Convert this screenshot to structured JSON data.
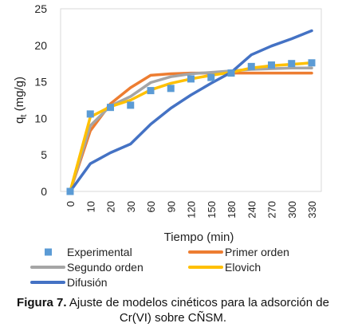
{
  "chart_data": {
    "type": "line",
    "xlabel": "Tiempo (min)",
    "ylabel": "q_t (mg/g)",
    "ylabel_main": "q",
    "ylabel_sub": "t",
    "ylabel_unit": " (mg/g)",
    "categories": [
      "0",
      "10",
      "20",
      "30",
      "60",
      "90",
      "120",
      "150",
      "180",
      "240",
      "270",
      "300",
      "330"
    ],
    "ylim": [
      0,
      25
    ],
    "yticks": [
      0,
      5,
      10,
      15,
      20,
      25
    ],
    "grid": false,
    "legend_position": "bottom",
    "series": [
      {
        "name": "Experimental",
        "kind": "scatter",
        "color": "#5b9bd5",
        "values": [
          0,
          10.6,
          11.5,
          11.8,
          13.8,
          14.1,
          15.4,
          15.6,
          16.2,
          17.1,
          17.3,
          17.5,
          17.6
        ]
      },
      {
        "name": "Primer orden",
        "kind": "line",
        "color": "#ed7d31",
        "values": [
          0,
          8.3,
          12.0,
          14.2,
          15.9,
          16.1,
          16.2,
          16.2,
          16.2,
          16.2,
          16.2,
          16.2,
          16.2
        ]
      },
      {
        "name": "Segundo orden",
        "kind": "line",
        "color": "#a5a5a5",
        "values": [
          0,
          9.0,
          11.7,
          13.0,
          14.9,
          15.7,
          16.1,
          16.3,
          16.5,
          16.7,
          16.8,
          16.9,
          16.9
        ]
      },
      {
        "name": "Elovich",
        "kind": "line",
        "color": "#ffc000",
        "values": [
          0,
          10.2,
          11.6,
          12.5,
          13.9,
          14.8,
          15.4,
          15.9,
          16.3,
          16.9,
          17.2,
          17.4,
          17.6
        ]
      },
      {
        "name": "Difusión",
        "kind": "line",
        "color": "#4472c4",
        "values": [
          0,
          3.8,
          5.3,
          6.5,
          9.2,
          11.4,
          13.2,
          14.8,
          16.3,
          18.7,
          19.9,
          20.9,
          22.0
        ]
      }
    ]
  },
  "caption": {
    "label": "Figura 7.",
    "text": " Ajuste de modelos cinéticos para la adsorción de Cr(VI) sobre CÑSM."
  }
}
